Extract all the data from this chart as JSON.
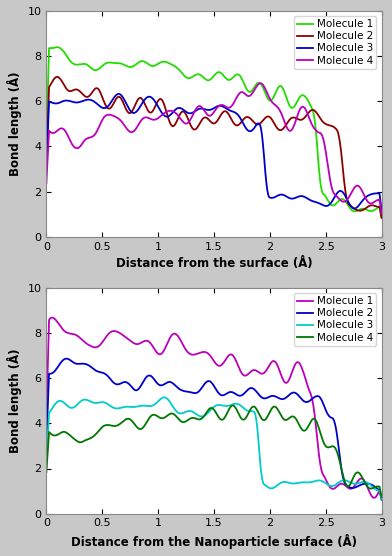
{
  "top_plot": {
    "xlabel": "Distance from the surface (Å)",
    "ylabel": "Bond length (Å)",
    "xlim": [
      0,
      3
    ],
    "ylim": [
      0,
      10
    ],
    "xticks": [
      0,
      0.5,
      1,
      1.5,
      2,
      2.5,
      3
    ],
    "xtick_labels": [
      "0",
      "0.5",
      "1",
      "1.5",
      "2",
      "2.5",
      "3"
    ],
    "yticks": [
      0,
      2,
      4,
      6,
      8,
      10
    ],
    "legend": [
      "Molecule 1",
      "Molecule 2",
      "Molecule 3",
      "Molecule 4"
    ],
    "colors": [
      "#22dd00",
      "#8b0000",
      "#0000cc",
      "#bb00bb"
    ]
  },
  "bottom_plot": {
    "xlabel": "Distance from the Nanoparticle surface (Å)",
    "ylabel": "Bond length (Å)",
    "xlim": [
      0,
      3
    ],
    "ylim": [
      0,
      10
    ],
    "xticks": [
      0,
      0.5,
      1,
      1.5,
      2,
      2.5,
      3
    ],
    "xtick_labels": [
      "0",
      "0.5",
      "1",
      "1.5",
      "2",
      "2.5",
      "3"
    ],
    "yticks": [
      0,
      2,
      4,
      6,
      8,
      10
    ],
    "legend": [
      "Molecule 1",
      "Molecule 2",
      "Molecule 3",
      "Molecule 4"
    ],
    "colors": [
      "#bb00bb",
      "#0000cc",
      "#00cccc",
      "#007700"
    ]
  },
  "figure_bg": "#c8c8c8"
}
